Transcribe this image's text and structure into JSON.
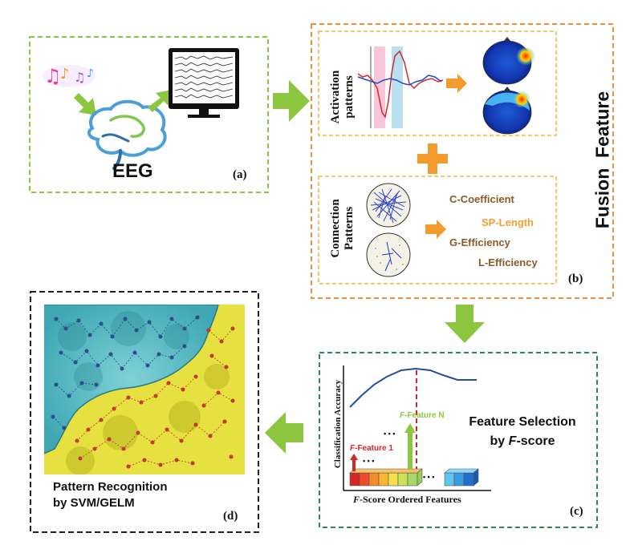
{
  "panel_a": {
    "eeg_label": "EEG",
    "tag": "(a)",
    "music_notes": "♫♪♫♪"
  },
  "panel_b": {
    "tag": "(b)",
    "title": "Fusion  Feature",
    "activation_label_1": "Activation",
    "activation_label_2": "patterns",
    "connection_label_1": "Connection",
    "connection_label_2": "Patterns",
    "metrics": [
      "C-Coefficient",
      "SP-Length",
      "G-Efficiency",
      "L-Efficiency"
    ]
  },
  "panel_c": {
    "tag": "(c)",
    "y_axis_label": "Classification Accuracy",
    "x_axis_label_italic": "F",
    "x_axis_label_rest": "-Score Ordered Features",
    "feature_1_italic": "F",
    "feature_1_rest": "-Feature 1",
    "feature_n_italic": "F",
    "feature_n_rest": "-Feature N",
    "title_line1": "Feature Selection",
    "title_line2_prefix": "by ",
    "title_line2_italic": "F",
    "title_line2_suffix": "-score",
    "ellipsis": "• • •"
  },
  "panel_d": {
    "tag": "(d)",
    "title_line1": "Pattern Recognition",
    "title_line2": "by SVM/GELM"
  },
  "colors": {
    "green_dash": "#8dc63f",
    "orange_dash": "#e8913a",
    "yellow_dash": "#f0b63c",
    "black_dash": "#222222",
    "dark_green_dash": "#2e8b57",
    "arrow_green": "#8cc63f",
    "arrow_orange": "#f39c2d",
    "metric_brown": "#8b5a2b",
    "metric_orange": "#f0a030",
    "feature_red": "#d62728",
    "feature_green": "#8dc63f"
  }
}
